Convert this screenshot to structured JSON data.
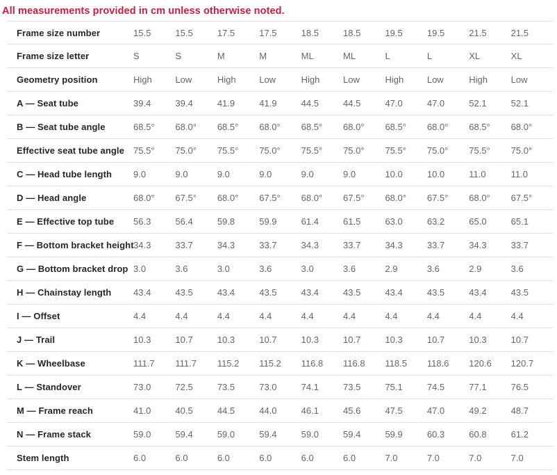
{
  "note": "All measurements provided in cm unless otherwise noted.",
  "colors": {
    "note_red": "#c6203d",
    "label_text": "#262626",
    "value_text": "#666666",
    "row_border": "#e0e0e0",
    "background": "#ffffff"
  },
  "chart_data": {
    "type": "table",
    "title": "All measurements provided in cm unless otherwise noted.",
    "layout": {
      "columns_per_row": 10,
      "grid": "horizontal row separators only",
      "label_column": "left, bold",
      "value_alignment": "left"
    },
    "rows": [
      {
        "label": "Frame size number",
        "values": [
          "15.5",
          "15.5",
          "17.5",
          "17.5",
          "18.5",
          "18.5",
          "19.5",
          "19.5",
          "21.5",
          "21.5"
        ]
      },
      {
        "label": "Frame size letter",
        "values": [
          "S",
          "S",
          "M",
          "M",
          "ML",
          "ML",
          "L",
          "L",
          "XL",
          "XL"
        ]
      },
      {
        "label": "Geometry position",
        "values": [
          "High",
          "Low",
          "High",
          "Low",
          "High",
          "Low",
          "High",
          "Low",
          "High",
          "Low"
        ]
      },
      {
        "label": "A — Seat tube",
        "values": [
          "39.4",
          "39.4",
          "41.9",
          "41.9",
          "44.5",
          "44.5",
          "47.0",
          "47.0",
          "52.1",
          "52.1"
        ]
      },
      {
        "label": "B — Seat tube angle",
        "values": [
          "68.5°",
          "68.0°",
          "68.5°",
          "68.0°",
          "68.5°",
          "68.0°",
          "68.5°",
          "68.0°",
          "68.5°",
          "68.0°"
        ]
      },
      {
        "label": "Effective seat tube angle",
        "values": [
          "75.5°",
          "75.0°",
          "75.5°",
          "75.0°",
          "75.5°",
          "75.0°",
          "75.5°",
          "75.0°",
          "75.5°",
          "75.0°"
        ]
      },
      {
        "label": "C — Head tube length",
        "values": [
          "9.0",
          "9.0",
          "9.0",
          "9.0",
          "9.0",
          "9.0",
          "10.0",
          "10.0",
          "11.0",
          "11.0"
        ]
      },
      {
        "label": "D — Head angle",
        "values": [
          "68.0°",
          "67.5°",
          "68.0°",
          "67.5°",
          "68.0°",
          "67.5°",
          "68.0°",
          "67.5°",
          "68.0°",
          "67.5°"
        ]
      },
      {
        "label": "E — Effective top tube",
        "values": [
          "56.3",
          "56.4",
          "59.8",
          "59.9",
          "61.4",
          "61.5",
          "63.0",
          "63.2",
          "65.0",
          "65.1"
        ]
      },
      {
        "label": "F — Bottom bracket height",
        "values": [
          "34.3",
          "33.7",
          "34.3",
          "33.7",
          "34.3",
          "33.7",
          "34.3",
          "33.7",
          "34.3",
          "33.7"
        ]
      },
      {
        "label": "G — Bottom bracket drop",
        "values": [
          "3.0",
          "3.6",
          "3.0",
          "3.6",
          "3.0",
          "3.6",
          "2.9",
          "3.6",
          "2.9",
          "3.6"
        ]
      },
      {
        "label": "H — Chainstay length",
        "values": [
          "43.4",
          "43.5",
          "43.4",
          "43.5",
          "43.4",
          "43.5",
          "43.4",
          "43.5",
          "43.4",
          "43.5"
        ]
      },
      {
        "label": "I — Offset",
        "values": [
          "4.4",
          "4.4",
          "4.4",
          "4.4",
          "4.4",
          "4.4",
          "4.4",
          "4.4",
          "4.4",
          "4.4"
        ]
      },
      {
        "label": "J — Trail",
        "values": [
          "10.3",
          "10.7",
          "10.3",
          "10.7",
          "10.3",
          "10.7",
          "10.3",
          "10.7",
          "10.3",
          "10.7"
        ]
      },
      {
        "label": "K — Wheelbase",
        "values": [
          "111.7",
          "111.7",
          "115.2",
          "115.2",
          "116.8",
          "116.8",
          "118.5",
          "118.6",
          "120.6",
          "120.7"
        ]
      },
      {
        "label": "L — Standover",
        "values": [
          "73.0",
          "72.5",
          "73.5",
          "73.0",
          "74.1",
          "73.5",
          "75.1",
          "74.5",
          "77.1",
          "76.5"
        ]
      },
      {
        "label": "M — Frame reach",
        "values": [
          "41.0",
          "40.5",
          "44.5",
          "44.0",
          "46.1",
          "45.6",
          "47.5",
          "47.0",
          "49.2",
          "48.7"
        ]
      },
      {
        "label": "N — Frame stack",
        "values": [
          "59.0",
          "59.4",
          "59.0",
          "59.4",
          "59.0",
          "59.4",
          "59.9",
          "60.3",
          "60.8",
          "61.2"
        ]
      },
      {
        "label": "Stem length",
        "values": [
          "6.0",
          "6.0",
          "6.0",
          "6.0",
          "6.0",
          "6.0",
          "7.0",
          "7.0",
          "7.0",
          "7.0"
        ]
      }
    ]
  }
}
